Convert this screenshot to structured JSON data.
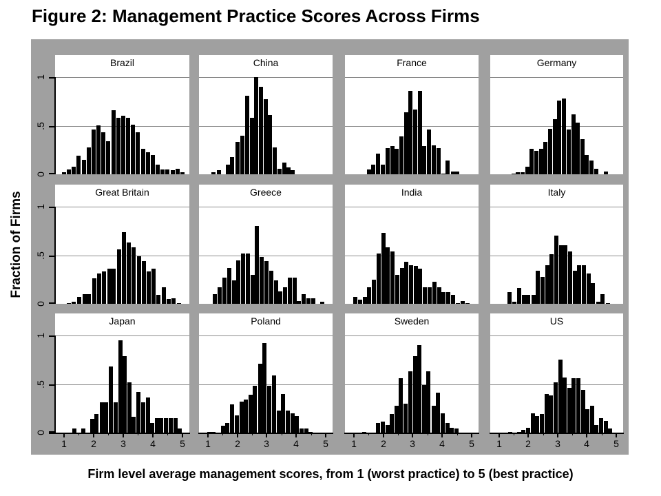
{
  "figure": {
    "title": "Figure 2: Management Practice Scores Across Firms",
    "y_axis_title": "Fraction of Firms",
    "x_axis_caption": "Firm level average management scores, from 1 (worst practice) to 5 (best practice)"
  },
  "axes": {
    "y_tick_labels": [
      "0",
      ".5",
      "1"
    ],
    "y_tick_values": [
      0,
      0.5,
      1
    ],
    "x_tick_labels": [
      "1",
      "2",
      "3",
      "4",
      "5"
    ],
    "x_tick_values": [
      1,
      2,
      3,
      4,
      5
    ],
    "x_minor_tick_values": [
      1.5,
      2.5,
      3.5,
      4.5
    ],
    "gridline_values": [
      0.5,
      1
    ]
  },
  "colors": {
    "board_background": "#a0a0a0",
    "panel_background": "#ffffff",
    "bar": "#000000",
    "gridline": "#8a8a8a",
    "axis": "#000000",
    "text": "#000000"
  },
  "chart_data": {
    "type": "bar",
    "subtype": "histogram-small-multiples",
    "grid_layout": "3 rows x 4 columns",
    "x_range": [
      1,
      5
    ],
    "y_range": [
      0,
      1
    ],
    "approx_bin_width": 0.15,
    "note": "bars are [score_bin_center, fraction_of_firms]",
    "panels": [
      {
        "country": "Brazil",
        "bars": [
          [
            1.0,
            0.02
          ],
          [
            1.17,
            0.05
          ],
          [
            1.33,
            0.08
          ],
          [
            1.5,
            0.19
          ],
          [
            1.67,
            0.15
          ],
          [
            1.83,
            0.28
          ],
          [
            2.0,
            0.46
          ],
          [
            2.17,
            0.5
          ],
          [
            2.33,
            0.43
          ],
          [
            2.5,
            0.34
          ],
          [
            2.67,
            0.66
          ],
          [
            2.83,
            0.58
          ],
          [
            3.0,
            0.6
          ],
          [
            3.17,
            0.58
          ],
          [
            3.33,
            0.51
          ],
          [
            3.5,
            0.43
          ],
          [
            3.67,
            0.26
          ],
          [
            3.83,
            0.23
          ],
          [
            4.0,
            0.2
          ],
          [
            4.17,
            0.1
          ],
          [
            4.33,
            0.05
          ],
          [
            4.5,
            0.05
          ],
          [
            4.67,
            0.04
          ],
          [
            4.83,
            0.06
          ],
          [
            5.0,
            0.02
          ]
        ]
      },
      {
        "country": "China",
        "bars": [
          [
            1.19,
            0.02
          ],
          [
            1.39,
            0.04
          ],
          [
            1.68,
            0.1
          ],
          [
            1.83,
            0.18
          ],
          [
            2.02,
            0.33
          ],
          [
            2.18,
            0.4
          ],
          [
            2.33,
            0.81
          ],
          [
            2.5,
            0.58
          ],
          [
            2.65,
            1.0
          ],
          [
            2.81,
            0.9
          ],
          [
            2.96,
            0.77
          ],
          [
            3.11,
            0.61
          ],
          [
            3.27,
            0.28
          ],
          [
            3.44,
            0.06
          ],
          [
            3.59,
            0.12
          ],
          [
            3.75,
            0.07
          ],
          [
            3.88,
            0.04
          ]
        ]
      },
      {
        "country": "France",
        "bars": [
          [
            1.52,
            0.05
          ],
          [
            1.67,
            0.1
          ],
          [
            1.83,
            0.21
          ],
          [
            1.99,
            0.1
          ],
          [
            2.15,
            0.27
          ],
          [
            2.31,
            0.29
          ],
          [
            2.46,
            0.26
          ],
          [
            2.62,
            0.39
          ],
          [
            2.77,
            0.64
          ],
          [
            2.92,
            0.86
          ],
          [
            3.08,
            0.67
          ],
          [
            3.25,
            0.86
          ],
          [
            3.4,
            0.29
          ],
          [
            3.56,
            0.46
          ],
          [
            3.72,
            0.3
          ],
          [
            3.87,
            0.27
          ],
          [
            4.04,
            0.01
          ],
          [
            4.19,
            0.14
          ],
          [
            4.36,
            0.03
          ],
          [
            4.51,
            0.03
          ]
        ]
      },
      {
        "country": "Germany",
        "bars": [
          [
            1.5,
            0.01
          ],
          [
            1.65,
            0.02
          ],
          [
            1.81,
            0.02
          ],
          [
            1.96,
            0.08
          ],
          [
            2.12,
            0.26
          ],
          [
            2.28,
            0.24
          ],
          [
            2.44,
            0.26
          ],
          [
            2.59,
            0.33
          ],
          [
            2.75,
            0.47
          ],
          [
            2.9,
            0.57
          ],
          [
            3.06,
            0.76
          ],
          [
            3.21,
            0.78
          ],
          [
            3.37,
            0.46
          ],
          [
            3.54,
            0.62
          ],
          [
            3.69,
            0.53
          ],
          [
            3.85,
            0.36
          ],
          [
            4.0,
            0.2
          ],
          [
            4.15,
            0.14
          ],
          [
            4.33,
            0.06
          ],
          [
            4.64,
            0.03
          ]
        ]
      },
      {
        "country": "Great Britain",
        "bars": [
          [
            1.16,
            0.01
          ],
          [
            1.34,
            0.02
          ],
          [
            1.51,
            0.07
          ],
          [
            1.69,
            0.1
          ],
          [
            1.85,
            0.1
          ],
          [
            2.02,
            0.26
          ],
          [
            2.19,
            0.31
          ],
          [
            2.36,
            0.33
          ],
          [
            2.53,
            0.36
          ],
          [
            2.68,
            0.36
          ],
          [
            2.86,
            0.56
          ],
          [
            3.02,
            0.74
          ],
          [
            3.19,
            0.63
          ],
          [
            3.36,
            0.58
          ],
          [
            3.53,
            0.49
          ],
          [
            3.7,
            0.44
          ],
          [
            3.87,
            0.33
          ],
          [
            4.03,
            0.36
          ],
          [
            4.2,
            0.09
          ],
          [
            4.38,
            0.17
          ],
          [
            4.54,
            0.05
          ],
          [
            4.71,
            0.06
          ],
          [
            4.88,
            0.01
          ]
        ]
      },
      {
        "country": "Greece",
        "bars": [
          [
            1.23,
            0.1
          ],
          [
            1.4,
            0.17
          ],
          [
            1.56,
            0.27
          ],
          [
            1.72,
            0.37
          ],
          [
            1.89,
            0.24
          ],
          [
            2.04,
            0.45
          ],
          [
            2.2,
            0.52
          ],
          [
            2.36,
            0.52
          ],
          [
            2.52,
            0.3
          ],
          [
            2.67,
            0.8
          ],
          [
            2.83,
            0.48
          ],
          [
            2.98,
            0.44
          ],
          [
            3.15,
            0.34
          ],
          [
            3.31,
            0.24
          ],
          [
            3.46,
            0.13
          ],
          [
            3.63,
            0.17
          ],
          [
            3.78,
            0.27
          ],
          [
            3.94,
            0.27
          ],
          [
            4.1,
            0.03
          ],
          [
            4.25,
            0.1
          ],
          [
            4.42,
            0.06
          ],
          [
            4.58,
            0.06
          ],
          [
            4.88,
            0.02
          ]
        ]
      },
      {
        "country": "India",
        "bars": [
          [
            1.04,
            0.07
          ],
          [
            1.21,
            0.04
          ],
          [
            1.37,
            0.07
          ],
          [
            1.52,
            0.17
          ],
          [
            1.68,
            0.25
          ],
          [
            1.85,
            0.52
          ],
          [
            2.0,
            0.73
          ],
          [
            2.15,
            0.58
          ],
          [
            2.31,
            0.54
          ],
          [
            2.48,
            0.3
          ],
          [
            2.63,
            0.37
          ],
          [
            2.79,
            0.43
          ],
          [
            2.95,
            0.4
          ],
          [
            3.1,
            0.39
          ],
          [
            3.25,
            0.36
          ],
          [
            3.42,
            0.17
          ],
          [
            3.58,
            0.17
          ],
          [
            3.75,
            0.23
          ],
          [
            3.9,
            0.17
          ],
          [
            4.05,
            0.12
          ],
          [
            4.21,
            0.12
          ],
          [
            4.37,
            0.09
          ],
          [
            4.54,
            0.01
          ],
          [
            4.69,
            0.03
          ],
          [
            4.86,
            0.01
          ]
        ]
      },
      {
        "country": "Italy",
        "bars": [
          [
            1.37,
            0.12
          ],
          [
            1.52,
            0.02
          ],
          [
            1.69,
            0.16
          ],
          [
            1.85,
            0.09
          ],
          [
            2.0,
            0.09
          ],
          [
            2.17,
            0.09
          ],
          [
            2.32,
            0.34
          ],
          [
            2.48,
            0.28
          ],
          [
            2.64,
            0.4
          ],
          [
            2.79,
            0.51
          ],
          [
            2.95,
            0.7
          ],
          [
            3.11,
            0.6
          ],
          [
            3.27,
            0.6
          ],
          [
            3.42,
            0.54
          ],
          [
            3.58,
            0.34
          ],
          [
            3.74,
            0.4
          ],
          [
            3.9,
            0.4
          ],
          [
            4.05,
            0.31
          ],
          [
            4.21,
            0.21
          ],
          [
            4.38,
            0.02
          ],
          [
            4.54,
            0.1
          ],
          [
            4.71,
            0.01
          ]
        ]
      },
      {
        "country": "Japan",
        "bars": [
          [
            1.35,
            0.04
          ],
          [
            1.66,
            0.04
          ],
          [
            1.95,
            0.14
          ],
          [
            2.1,
            0.19
          ],
          [
            2.28,
            0.31
          ],
          [
            2.42,
            0.31
          ],
          [
            2.59,
            0.68
          ],
          [
            2.74,
            0.31
          ],
          [
            2.9,
            0.95
          ],
          [
            3.05,
            0.79
          ],
          [
            3.21,
            0.52
          ],
          [
            3.36,
            0.16
          ],
          [
            3.52,
            0.42
          ],
          [
            3.67,
            0.31
          ],
          [
            3.83,
            0.36
          ],
          [
            3.98,
            0.1
          ],
          [
            4.14,
            0.15
          ],
          [
            4.29,
            0.15
          ],
          [
            4.45,
            0.15
          ],
          [
            4.6,
            0.15
          ],
          [
            4.76,
            0.15
          ],
          [
            4.91,
            0.04
          ]
        ]
      },
      {
        "country": "Poland",
        "bars": [
          [
            1.06,
            0.01
          ],
          [
            1.19,
            0.01
          ],
          [
            1.52,
            0.07
          ],
          [
            1.67,
            0.1
          ],
          [
            1.83,
            0.29
          ],
          [
            1.99,
            0.18
          ],
          [
            2.14,
            0.32
          ],
          [
            2.29,
            0.34
          ],
          [
            2.45,
            0.39
          ],
          [
            2.6,
            0.48
          ],
          [
            2.78,
            0.71
          ],
          [
            2.93,
            0.92
          ],
          [
            3.08,
            0.48
          ],
          [
            3.24,
            0.59
          ],
          [
            3.41,
            0.23
          ],
          [
            3.56,
            0.4
          ],
          [
            3.71,
            0.23
          ],
          [
            3.87,
            0.2
          ],
          [
            4.02,
            0.17
          ],
          [
            4.18,
            0.04
          ],
          [
            4.34,
            0.04
          ],
          [
            4.49,
            0.01
          ]
        ]
      },
      {
        "country": "Sweden",
        "bars": [
          [
            1.35,
            0.01
          ],
          [
            1.83,
            0.1
          ],
          [
            1.99,
            0.11
          ],
          [
            2.14,
            0.08
          ],
          [
            2.29,
            0.19
          ],
          [
            2.45,
            0.28
          ],
          [
            2.6,
            0.56
          ],
          [
            2.75,
            0.3
          ],
          [
            2.92,
            0.63
          ],
          [
            3.08,
            0.79
          ],
          [
            3.23,
            0.9
          ],
          [
            3.38,
            0.49
          ],
          [
            3.54,
            0.63
          ],
          [
            3.71,
            0.28
          ],
          [
            3.86,
            0.41
          ],
          [
            4.02,
            0.2
          ],
          [
            4.18,
            0.1
          ],
          [
            4.33,
            0.05
          ],
          [
            4.48,
            0.04
          ]
        ]
      },
      {
        "country": "US",
        "bars": [
          [
            1.38,
            0.01
          ],
          [
            1.68,
            0.01
          ],
          [
            1.83,
            0.03
          ],
          [
            1.99,
            0.05
          ],
          [
            2.15,
            0.2
          ],
          [
            2.31,
            0.17
          ],
          [
            2.46,
            0.19
          ],
          [
            2.62,
            0.4
          ],
          [
            2.78,
            0.38
          ],
          [
            2.94,
            0.52
          ],
          [
            3.09,
            0.75
          ],
          [
            3.25,
            0.57
          ],
          [
            3.4,
            0.46
          ],
          [
            3.55,
            0.56
          ],
          [
            3.71,
            0.56
          ],
          [
            3.87,
            0.44
          ],
          [
            4.02,
            0.24
          ],
          [
            4.18,
            0.28
          ],
          [
            4.33,
            0.08
          ],
          [
            4.49,
            0.15
          ],
          [
            4.64,
            0.12
          ],
          [
            4.8,
            0.04
          ]
        ]
      }
    ]
  }
}
